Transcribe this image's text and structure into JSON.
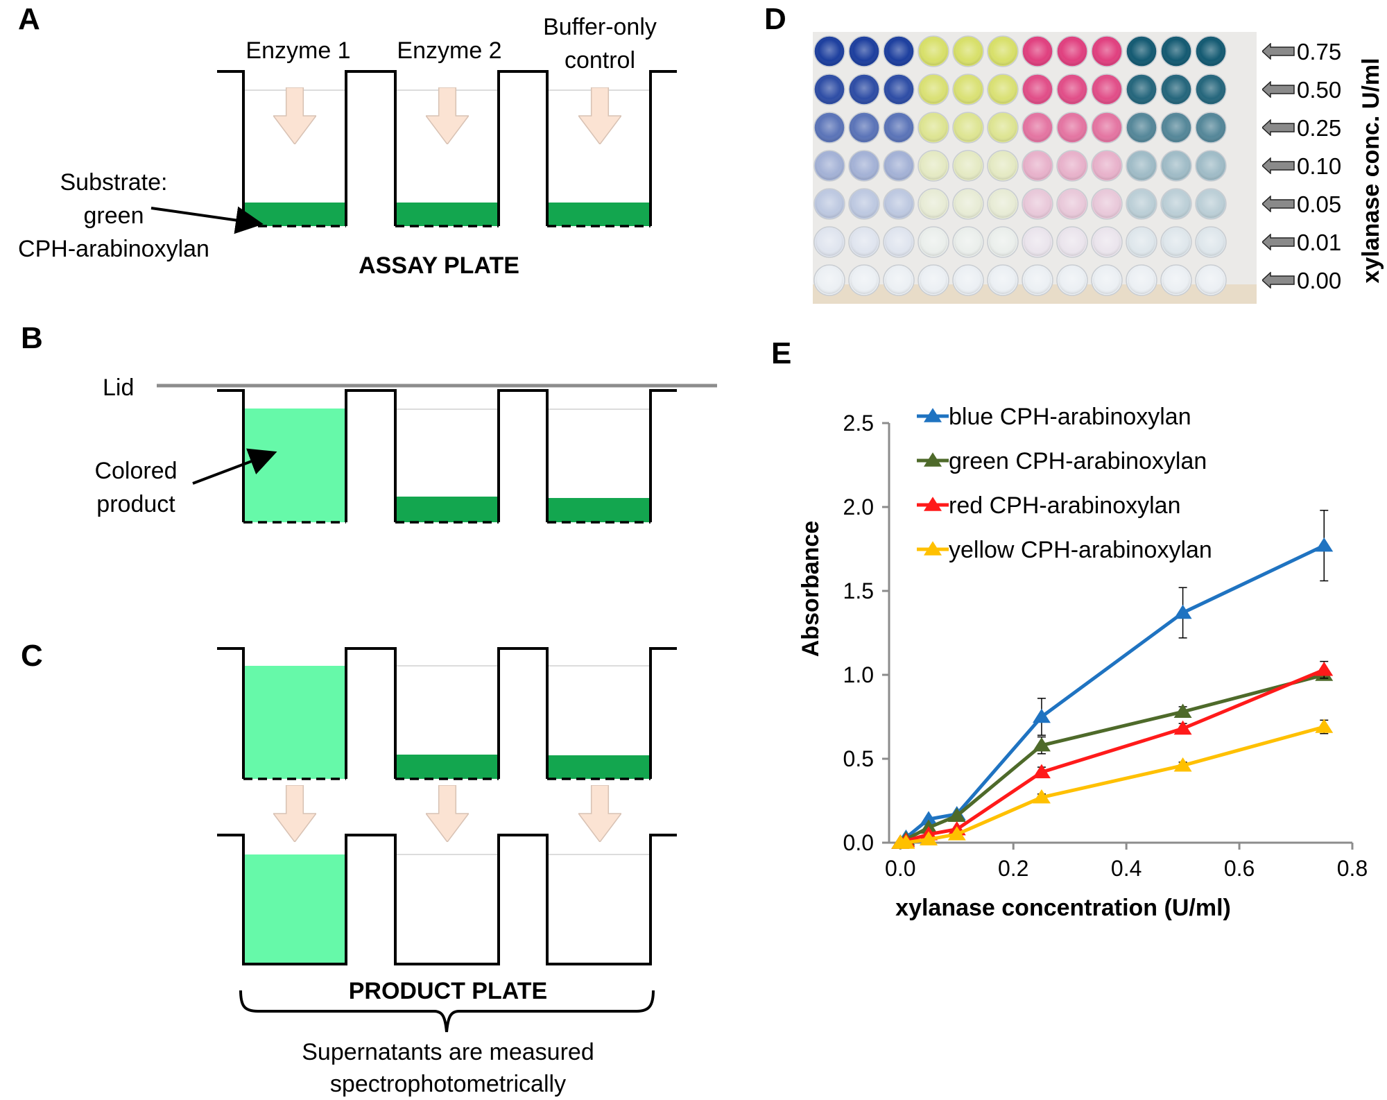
{
  "panels": {
    "a": "A",
    "b": "B",
    "c": "C",
    "d": "D",
    "e": "E"
  },
  "panel_a": {
    "enzyme1": "Enzyme 1",
    "enzyme2": "Enzyme 2",
    "control_line1": "Buffer-only",
    "control_line2": "control",
    "substrate_line1": "Substrate:",
    "substrate_line2": "green",
    "substrate_line3": "CPH-arabinoxylan",
    "plate_label": "ASSAY PLATE"
  },
  "panel_b": {
    "lid": "Lid",
    "product_line1": "Colored",
    "product_line2": "product"
  },
  "panel_c": {
    "plate_label": "PRODUCT PLATE",
    "note_line1": "Supernatants are measured",
    "note_line2": "spectrophotometrically"
  },
  "panel_d": {
    "axis_label": "xylanase conc. U/ml",
    "concentrations": [
      "0.75",
      "0.50",
      "0.25",
      "0.10",
      "0.05",
      "0.01",
      "0.00"
    ],
    "substrate_colors": [
      "#1d3f9e",
      "#d8e06a",
      "#e0407f",
      "#145a72"
    ],
    "intensity": [
      1.0,
      0.92,
      0.7,
      0.35,
      0.22,
      0.06,
      0.0
    ]
  },
  "colors": {
    "substrate_green": "#13a64f",
    "product_green": "#66f9a9",
    "arrow_fill": "#fbe3d3",
    "arrow_stroke": "#d8c2b4",
    "lid_gray": "#8c8c8c"
  },
  "chart_data": {
    "type": "line",
    "title": "",
    "xlabel": "xylanase concentration (U/ml)",
    "ylabel": "Absorbance",
    "xlim": [
      -0.02,
      0.8
    ],
    "ylim": [
      0,
      2.5
    ],
    "x_ticks": [
      "0.0",
      "0.2",
      "0.4",
      "0.6",
      "0.8"
    ],
    "y_ticks": [
      "0.0",
      "0.5",
      "1.0",
      "1.5",
      "2.0",
      "2.5"
    ],
    "x_tick_values": [
      0.0,
      0.2,
      0.4,
      0.6,
      0.8
    ],
    "y_tick_values": [
      0.0,
      0.5,
      1.0,
      1.5,
      2.0,
      2.5
    ],
    "legend_position": "top-left",
    "series": [
      {
        "name": "blue CPH-arabinoxylan",
        "color": "#1f73c1",
        "x": [
          0.0,
          0.01,
          0.05,
          0.1,
          0.25,
          0.5,
          0.75
        ],
        "y": [
          0.0,
          0.03,
          0.14,
          0.17,
          0.75,
          1.37,
          1.77
        ],
        "err": [
          0.0,
          0.0,
          0.0,
          0.0,
          0.11,
          0.15,
          0.21
        ]
      },
      {
        "name": "green CPH-arabinoxylan",
        "color": "#4e6a2a",
        "x": [
          0.0,
          0.01,
          0.05,
          0.1,
          0.25,
          0.5,
          0.75
        ],
        "y": [
          0.0,
          0.02,
          0.09,
          0.16,
          0.58,
          0.78,
          1.0
        ],
        "err": [
          0.0,
          0.0,
          0.0,
          0.0,
          0.05,
          0.03,
          0.03
        ]
      },
      {
        "name": "red CPH-arabinoxylan",
        "color": "#ff1a1a",
        "x": [
          0.0,
          0.01,
          0.05,
          0.1,
          0.25,
          0.5,
          0.75
        ],
        "y": [
          0.0,
          0.01,
          0.05,
          0.08,
          0.42,
          0.68,
          1.03
        ],
        "err": [
          0.0,
          0.0,
          0.0,
          0.0,
          0.03,
          0.03,
          0.05
        ]
      },
      {
        "name": "yellow  CPH-arabinoxylan",
        "color": "#ffc000",
        "x": [
          0.0,
          0.01,
          0.05,
          0.1,
          0.25,
          0.5,
          0.75
        ],
        "y": [
          0.0,
          0.0,
          0.02,
          0.05,
          0.27,
          0.46,
          0.69
        ],
        "err": [
          0.0,
          0.0,
          0.0,
          0.0,
          0.02,
          0.02,
          0.04
        ]
      }
    ]
  }
}
